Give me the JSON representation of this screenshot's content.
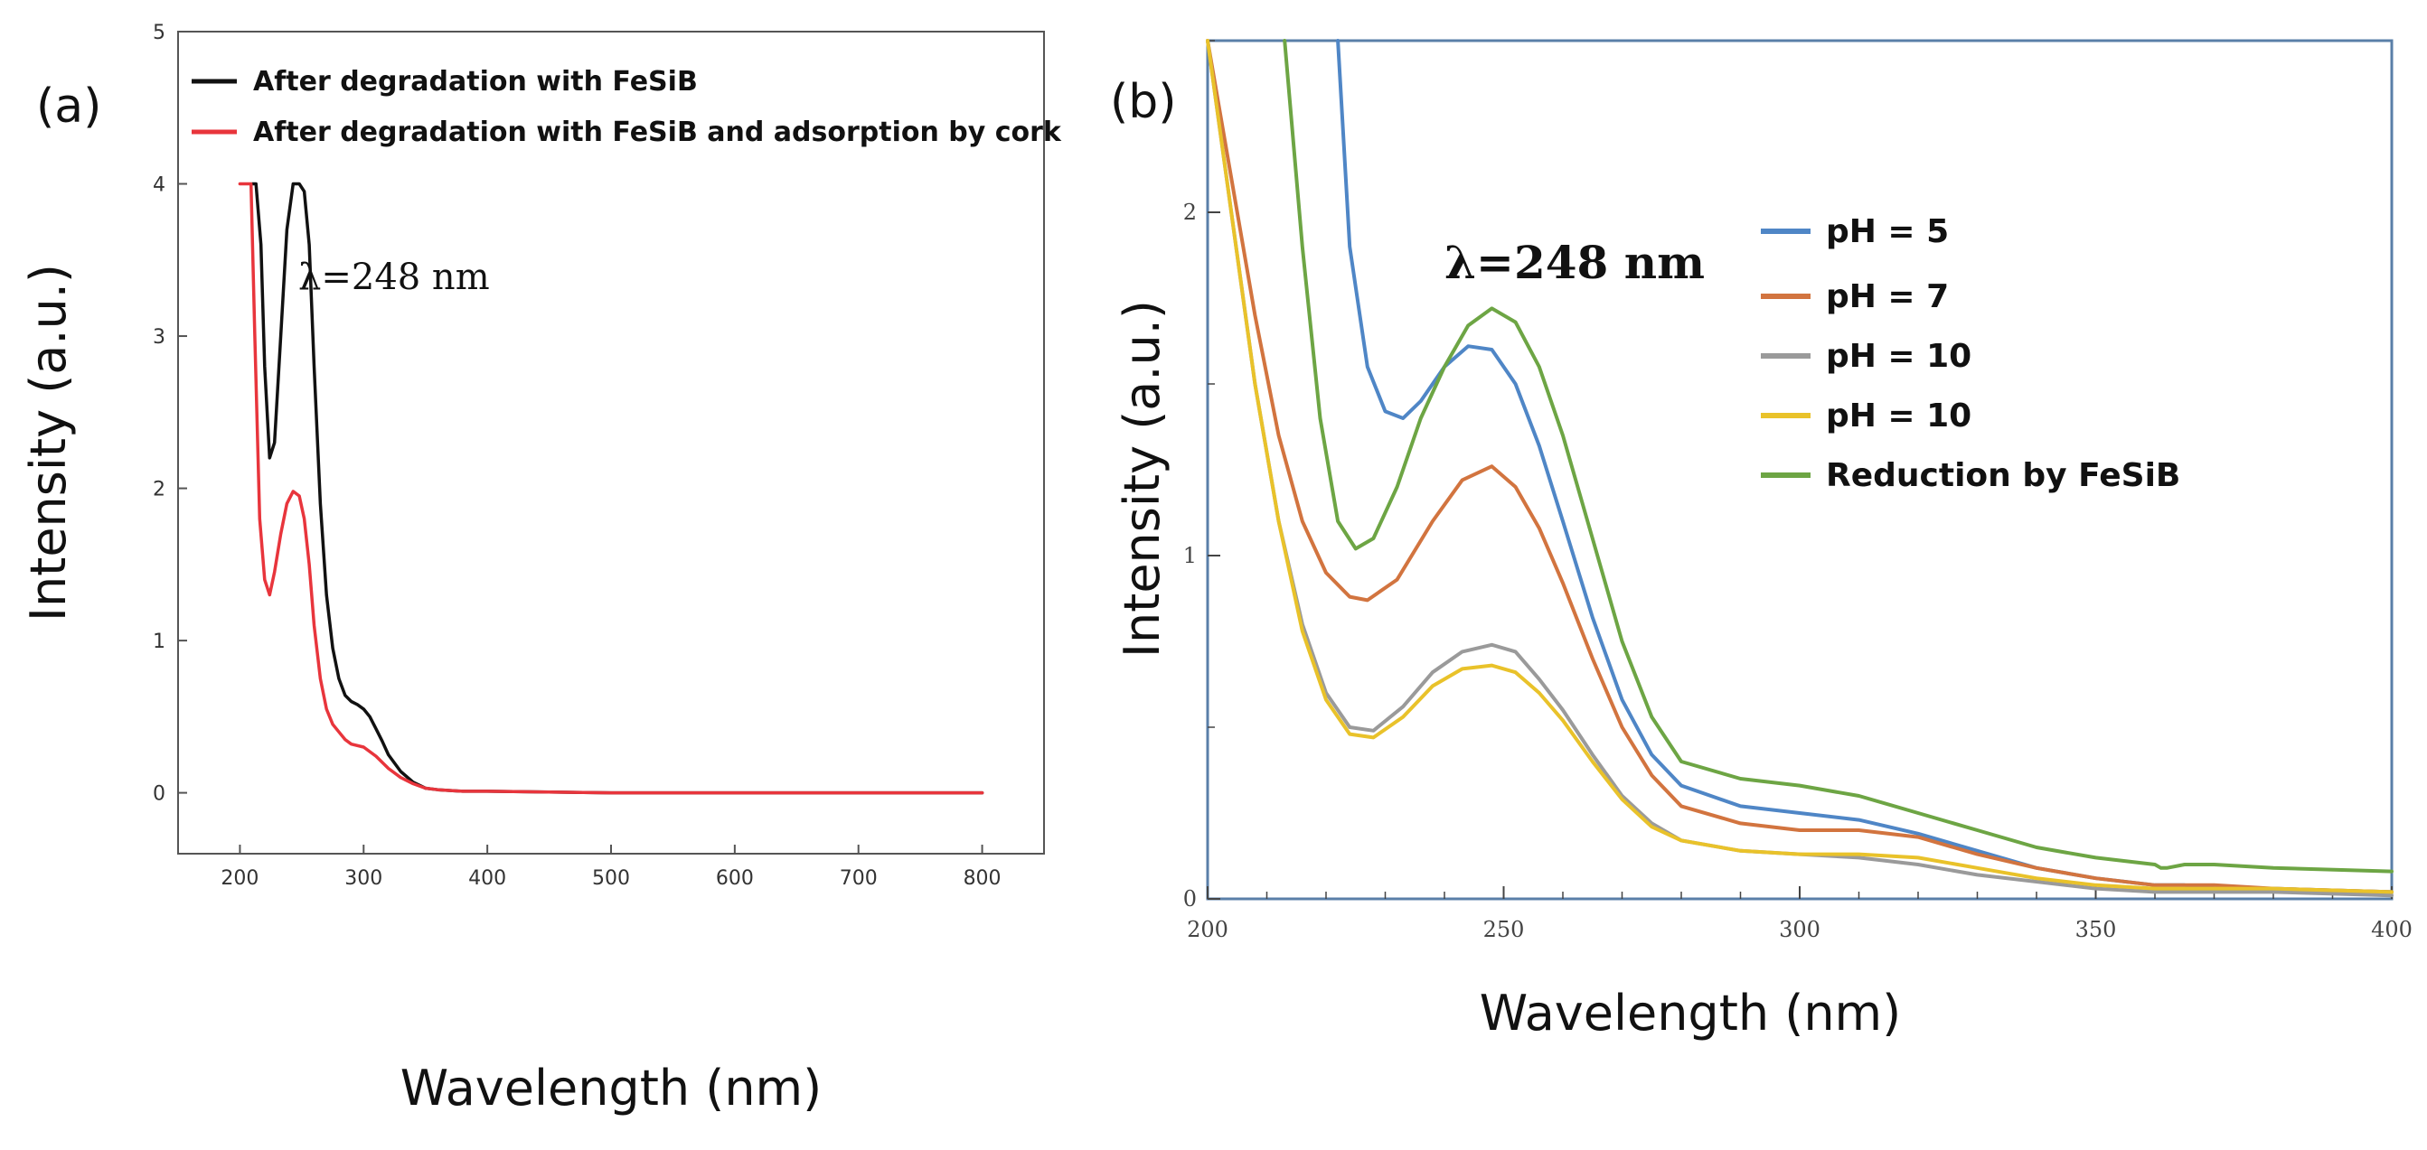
{
  "chart_data": [
    {
      "type": "line",
      "panel_label": "(a)",
      "xlabel": "Wavelength (nm)",
      "ylabel": "Intensity (a.u.)",
      "xlim": [
        150,
        850
      ],
      "ylim": [
        -0.4,
        5
      ],
      "xticks": [
        "200",
        "300",
        "400",
        "500",
        "600",
        "700",
        "800"
      ],
      "yticks": [
        "0",
        "1",
        "2",
        "3",
        "4",
        "5"
      ],
      "annotation": "λ=248 nm",
      "legend_position": "top-left",
      "series": [
        {
          "name": "After degradation with FeSiB",
          "color": "#111111",
          "x": [
            210,
            213,
            217,
            220,
            224,
            228,
            233,
            238,
            243,
            248,
            252,
            256,
            260,
            265,
            270,
            275,
            280,
            285,
            290,
            295,
            300,
            305,
            310,
            315,
            320,
            330,
            340,
            350,
            360,
            380,
            400,
            500,
            600,
            700,
            800
          ],
          "y": [
            4.0,
            4.0,
            3.6,
            2.8,
            2.2,
            2.3,
            3.0,
            3.7,
            4.0,
            4.0,
            3.95,
            3.6,
            2.8,
            1.9,
            1.3,
            0.95,
            0.75,
            0.64,
            0.6,
            0.58,
            0.55,
            0.5,
            0.42,
            0.34,
            0.25,
            0.14,
            0.07,
            0.03,
            0.02,
            0.01,
            0.01,
            0.0,
            0.0,
            0.0,
            0.0
          ]
        },
        {
          "name": "After degradation with FeSiB and adsorption by cork",
          "color": "#e8353c",
          "x": [
            200,
            203,
            206,
            209,
            212,
            216,
            220,
            224,
            228,
            233,
            238,
            243,
            248,
            252,
            256,
            260,
            265,
            270,
            275,
            280,
            285,
            290,
            300,
            310,
            320,
            330,
            340,
            350,
            360,
            380,
            400,
            500,
            600,
            700,
            800
          ],
          "y": [
            4.0,
            4.0,
            4.0,
            4.0,
            3.0,
            1.8,
            1.4,
            1.3,
            1.45,
            1.7,
            1.9,
            1.98,
            1.95,
            1.8,
            1.5,
            1.1,
            0.75,
            0.55,
            0.45,
            0.4,
            0.35,
            0.32,
            0.3,
            0.24,
            0.16,
            0.1,
            0.06,
            0.03,
            0.02,
            0.01,
            0.01,
            0.0,
            0.0,
            0.0,
            0.0
          ]
        }
      ]
    },
    {
      "type": "line",
      "panel_label": "(b)",
      "xlabel": "Wavelength (nm)",
      "ylabel": "Intensity (a.u.)",
      "xlim": [
        200,
        400
      ],
      "ylim": [
        0,
        2.5
      ],
      "xticks": [
        "200",
        "250",
        "300",
        "350",
        "400"
      ],
      "yticks": [
        "0",
        "1",
        "2"
      ],
      "annotation": "λ=248 nm",
      "legend_position": "right",
      "series": [
        {
          "name": "pH = 5",
          "color": "#4f86c6",
          "x": [
            222,
            224,
            227,
            230,
            233,
            236,
            240,
            244,
            248,
            252,
            256,
            260,
            265,
            270,
            275,
            280,
            290,
            300,
            310,
            320,
            330,
            340,
            350,
            360,
            365,
            370,
            380,
            400
          ],
          "y": [
            2.5,
            1.9,
            1.55,
            1.42,
            1.4,
            1.45,
            1.55,
            1.61,
            1.6,
            1.5,
            1.32,
            1.1,
            0.82,
            0.58,
            0.42,
            0.33,
            0.27,
            0.25,
            0.23,
            0.19,
            0.14,
            0.09,
            0.06,
            0.04,
            0.04,
            0.03,
            0.03,
            0.02
          ]
        },
        {
          "name": "pH = 7",
          "color": "#d2743f",
          "x": [
            200,
            204,
            208,
            212,
            216,
            220,
            224,
            227,
            232,
            238,
            243,
            248,
            252,
            256,
            260,
            265,
            270,
            275,
            280,
            290,
            300,
            310,
            320,
            330,
            340,
            350,
            360,
            370,
            380,
            400
          ],
          "y": [
            2.5,
            2.1,
            1.7,
            1.35,
            1.1,
            0.95,
            0.88,
            0.87,
            0.93,
            1.1,
            1.22,
            1.26,
            1.2,
            1.08,
            0.92,
            0.7,
            0.5,
            0.36,
            0.27,
            0.22,
            0.2,
            0.2,
            0.18,
            0.13,
            0.09,
            0.06,
            0.04,
            0.04,
            0.03,
            0.02
          ]
        },
        {
          "name": "pH = 10",
          "color": "#9a9a9a",
          "x": [
            200,
            204,
            208,
            212,
            216,
            220,
            224,
            228,
            233,
            238,
            243,
            248,
            252,
            256,
            260,
            265,
            270,
            275,
            280,
            290,
            300,
            310,
            320,
            330,
            340,
            350,
            360,
            370,
            380,
            400
          ],
          "y": [
            2.5,
            2.0,
            1.5,
            1.1,
            0.8,
            0.6,
            0.5,
            0.49,
            0.56,
            0.66,
            0.72,
            0.74,
            0.72,
            0.64,
            0.55,
            0.42,
            0.3,
            0.22,
            0.17,
            0.14,
            0.13,
            0.12,
            0.1,
            0.07,
            0.05,
            0.03,
            0.02,
            0.02,
            0.02,
            0.01
          ]
        },
        {
          "name": "pH = 10",
          "color": "#e9c22a",
          "x": [
            200,
            204,
            208,
            212,
            216,
            220,
            224,
            228,
            233,
            238,
            243,
            248,
            252,
            256,
            260,
            265,
            270,
            275,
            280,
            290,
            300,
            310,
            320,
            330,
            340,
            350,
            360,
            370,
            380,
            400
          ],
          "y": [
            2.5,
            2.0,
            1.5,
            1.1,
            0.78,
            0.58,
            0.48,
            0.47,
            0.53,
            0.62,
            0.67,
            0.68,
            0.66,
            0.6,
            0.52,
            0.4,
            0.29,
            0.21,
            0.17,
            0.14,
            0.13,
            0.13,
            0.12,
            0.09,
            0.06,
            0.04,
            0.03,
            0.03,
            0.03,
            0.02
          ]
        },
        {
          "name": "Reduction by FeSiB",
          "color": "#6da544",
          "x": [
            213,
            216,
            219,
            222,
            225,
            228,
            232,
            236,
            240,
            244,
            248,
            252,
            256,
            260,
            265,
            270,
            275,
            280,
            290,
            300,
            310,
            320,
            330,
            340,
            350,
            360,
            361,
            362,
            365,
            370,
            380,
            400
          ],
          "y": [
            2.5,
            1.9,
            1.4,
            1.1,
            1.02,
            1.05,
            1.2,
            1.4,
            1.55,
            1.67,
            1.72,
            1.68,
            1.55,
            1.35,
            1.05,
            0.75,
            0.53,
            0.4,
            0.35,
            0.33,
            0.3,
            0.25,
            0.2,
            0.15,
            0.12,
            0.1,
            0.09,
            0.09,
            0.1,
            0.1,
            0.09,
            0.08
          ]
        }
      ]
    }
  ]
}
